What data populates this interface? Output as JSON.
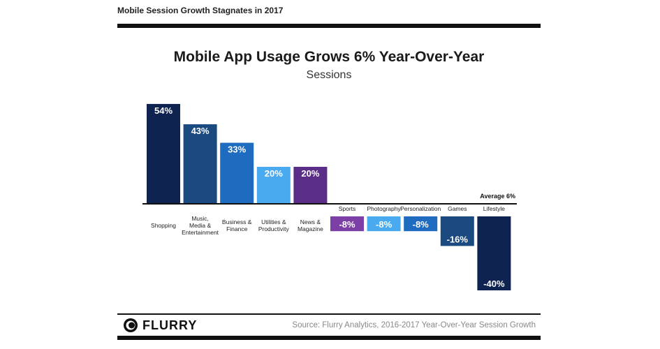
{
  "header": {
    "title": "Mobile Session Growth Stagnates in 2017"
  },
  "chart_data": {
    "type": "bar",
    "title": "Mobile App Usage Grows 6% Year-Over-Year",
    "subtitle": "Sessions",
    "categories": [
      "Shopping",
      "Music,\nMedia &\nEntertainment",
      "Business &\nFinance",
      "Utilities &\nProductivity",
      "News &\nMagazine",
      "Sports",
      "Photography",
      "Personalization",
      "Games",
      "Lifestyle"
    ],
    "values": [
      54,
      43,
      33,
      20,
      20,
      -8,
      -8,
      -8,
      -16,
      -40
    ],
    "value_labels": [
      "54%",
      "43%",
      "33%",
      "20%",
      "20%",
      "-8%",
      "-8%",
      "-8%",
      "-16%",
      "-40%"
    ],
    "colors": [
      "#0f2350",
      "#1a4a80",
      "#1e6bc0",
      "#4aaaf0",
      "#5a2d86",
      "#7b3fa6",
      "#4aaaf0",
      "#1e6bc0",
      "#1a4a80",
      "#0f2350"
    ],
    "reference_line": {
      "label": "Average 6%",
      "value": 6
    },
    "ylabel": "",
    "xlabel": ""
  },
  "footer": {
    "logo_text": "FLURRY",
    "source": "Source: Flurry Analytics, 2016-2017 Year-Over-Year Session Growth"
  }
}
